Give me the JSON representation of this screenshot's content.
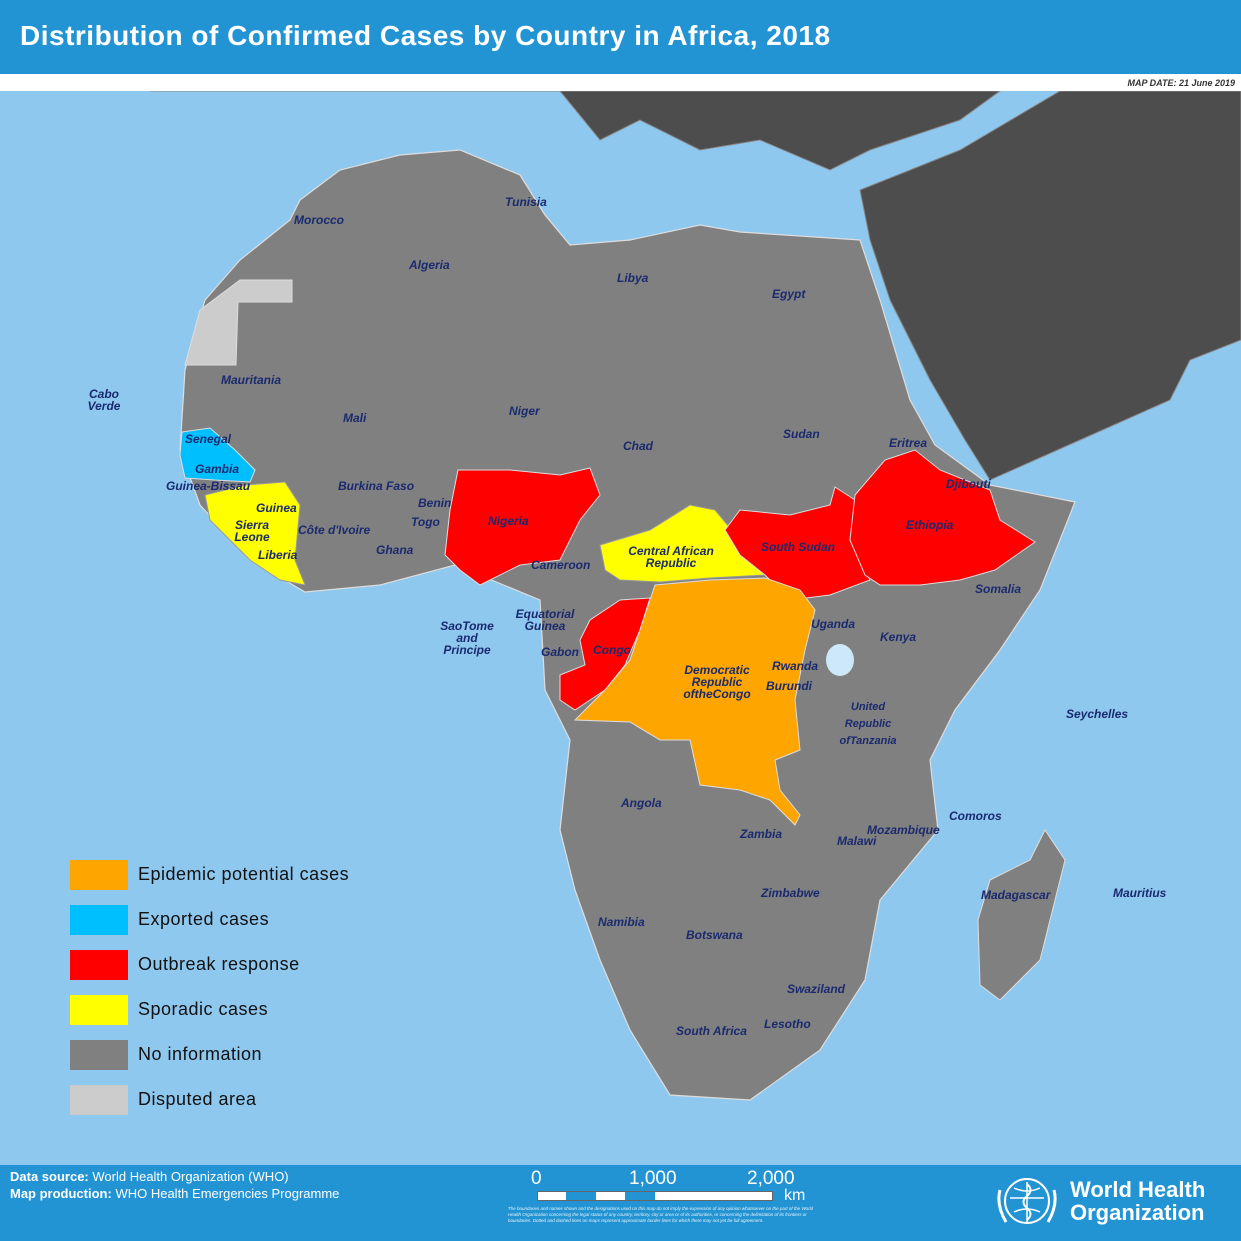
{
  "header": {
    "title": "Distribution of Confirmed Cases by Country in Africa, 2018",
    "map_date": "MAP DATE: 21 June 2019"
  },
  "colors": {
    "epidemic": "#ffa500",
    "exported": "#00bfff",
    "outbreak": "#ff0000",
    "sporadic": "#ffff00",
    "no_info": "#808080",
    "disputed": "#cccccc",
    "ocean": "#8fc8ef",
    "other_land": "#4d4d4d",
    "header": "#2394d3"
  },
  "legend": [
    {
      "label": "Epidemic potential cases",
      "color": "#ffa500"
    },
    {
      "label": "Exported cases",
      "color": "#00bfff"
    },
    {
      "label": "Outbreak response",
      "color": "#ff0000"
    },
    {
      "label": "Sporadic cases",
      "color": "#ffff00"
    },
    {
      "label": "No information",
      "color": "#808080"
    },
    {
      "label": "Disputed area",
      "color": "#cccccc"
    }
  ],
  "countries": {
    "morocco": "Morocco",
    "tunisia": "Tunisia",
    "algeria": "Algeria",
    "libya": "Libya",
    "egypt": "Egypt",
    "mauritania": "Mauritania",
    "mali": "Mali",
    "niger": "Niger",
    "chad": "Chad",
    "sudan": "Sudan",
    "eritrea": "Eritrea",
    "djibouti": "Djibouti",
    "cabo_verde": "Cabo Verde",
    "senegal": "Senegal",
    "gambia": "Gambia",
    "guinea_bissau": "Guinea-Bissau",
    "guinea": "Guinea",
    "sierra_leone": "Sierra Leone",
    "liberia": "Liberia",
    "cote_divoire": "Côte d'Ivoire",
    "burkina_faso": "Burkina Faso",
    "ghana": "Ghana",
    "togo": "Togo",
    "benin": "Benin",
    "nigeria": "Nigeria",
    "cameroon": "Cameroon",
    "car": "Central African Republic",
    "south_sudan": "South Sudan",
    "ethiopia": "Ethiopia",
    "somalia": "Somalia",
    "sao_tome": "SaoTome and Principe",
    "eq_guinea": "Equatorial Guinea",
    "gabon": "Gabon",
    "congo": "Congo",
    "drc": "Democratic Republic oftheCongo",
    "uganda": "Uganda",
    "kenya": "Kenya",
    "rwanda": "Rwanda",
    "burundi": "Burundi",
    "tanzania": "United Republic ofTanzania",
    "seychelles": "Seychelles",
    "angola": "Angola",
    "zambia": "Zambia",
    "malawi": "Malawi",
    "mozambique": "Mozambique",
    "comoros": "Comoros",
    "madagascar": "Madagascar",
    "mauritius": "Mauritius",
    "zimbabwe": "Zimbabwe",
    "namibia": "Namibia",
    "botswana": "Botswana",
    "swaziland": "Swaziland",
    "lesotho": "Lesotho",
    "south_africa": "South Africa"
  },
  "footer": {
    "data_source_label": "Data source:",
    "data_source": "World Health Organization (WHO)",
    "map_production_label": "Map production:",
    "map_production": "WHO Health Emergencies Programme",
    "scale_0": "0",
    "scale_1000": "1,000",
    "scale_2000": "2,000",
    "scale_unit": "km",
    "disclaimer": "The boundaries and names shown and the designations used on this map do not imply the expression of any opinion whatsoever on the part of the World Health Organization concerning the legal status of any country, territory, city or area or of its authorities, or concerning the delimitation of its frontiers or boundaries. Dotted and dashed lines on maps represent approximate border lines for which there may not yet be full agreement.",
    "who_logo": "World Health Organization"
  }
}
